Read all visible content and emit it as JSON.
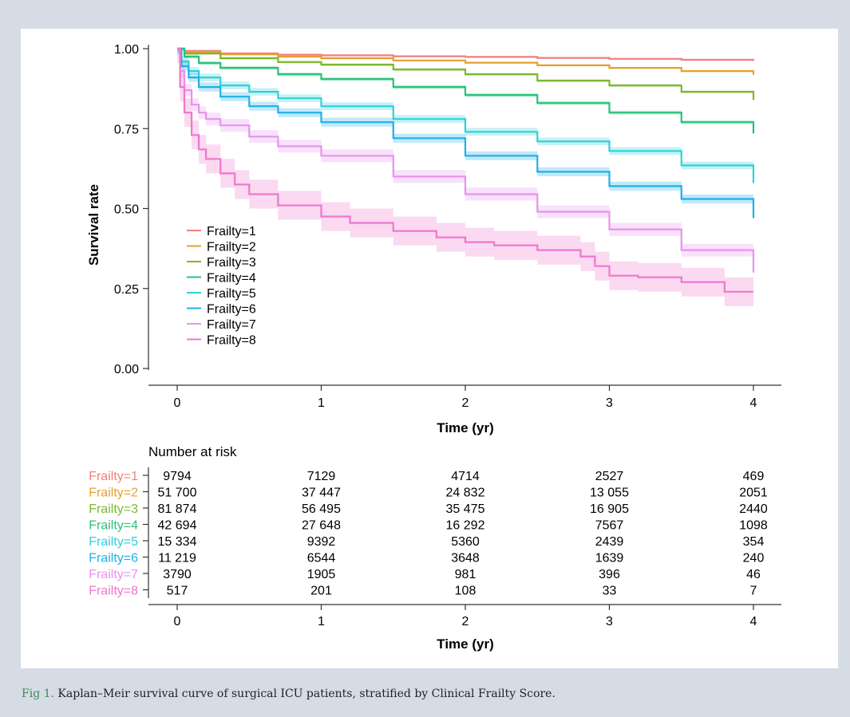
{
  "colors": {
    "background": "#d6dce6",
    "panel": "#ffffff",
    "axis": "#333333",
    "text": "#000000",
    "caption_label": "#3d8a52"
  },
  "chart_data": [
    {
      "type": "line",
      "subtype": "kaplan-meier",
      "title": "",
      "xlabel": "Time (yr)",
      "ylabel": "Survival rate",
      "xlim": [
        0,
        4
      ],
      "ylim": [
        0,
        1
      ],
      "x_ticks": [
        0,
        1,
        2,
        3,
        4
      ],
      "x_tick_labels": [
        "0",
        "1",
        "2",
        "3",
        "4"
      ],
      "y_ticks": [
        0,
        0.25,
        0.5,
        0.75,
        1
      ],
      "y_tick_labels": [
        "0.00",
        "0.25",
        "0.50",
        "0.75",
        "1.00"
      ],
      "grid": false,
      "legend_position": "bottom-left",
      "series": [
        {
          "name": "Frailty=1",
          "color": "#f08080",
          "x": [
            0,
            0.05,
            0.3,
            0.7,
            1,
            1.5,
            2,
            2.5,
            3,
            3.5,
            4
          ],
          "y": [
            1,
            0.993,
            0.985,
            0.981,
            0.979,
            0.976,
            0.974,
            0.971,
            0.968,
            0.965,
            0.962
          ],
          "band": 0.003
        },
        {
          "name": "Frailty=2",
          "color": "#e5a030",
          "x": [
            0,
            0.05,
            0.3,
            0.7,
            1,
            1.5,
            2,
            2.5,
            3,
            3.5,
            4
          ],
          "y": [
            1,
            0.99,
            0.982,
            0.975,
            0.97,
            0.963,
            0.956,
            0.948,
            0.94,
            0.93,
            0.918
          ],
          "band": 0.003
        },
        {
          "name": "Frailty=3",
          "color": "#7cb82f",
          "x": [
            0,
            0.05,
            0.3,
            0.7,
            1,
            1.5,
            2,
            2.5,
            3,
            3.5,
            4
          ],
          "y": [
            1,
            0.985,
            0.97,
            0.958,
            0.95,
            0.935,
            0.92,
            0.9,
            0.885,
            0.865,
            0.84
          ],
          "band": 0.004
        },
        {
          "name": "Frailty=4",
          "color": "#2cc07a",
          "x": [
            0,
            0.05,
            0.15,
            0.3,
            0.7,
            1,
            1.5,
            2,
            2.5,
            3,
            3.5,
            4
          ],
          "y": [
            1,
            0.975,
            0.955,
            0.94,
            0.92,
            0.905,
            0.88,
            0.855,
            0.83,
            0.8,
            0.77,
            0.735
          ],
          "band": 0.006
        },
        {
          "name": "Frailty=5",
          "color": "#2fd0d8",
          "x": [
            0,
            0.03,
            0.08,
            0.15,
            0.3,
            0.5,
            0.7,
            1,
            1.5,
            2,
            2.5,
            3,
            3.5,
            4
          ],
          "y": [
            1,
            0.96,
            0.93,
            0.91,
            0.885,
            0.865,
            0.845,
            0.82,
            0.78,
            0.74,
            0.71,
            0.68,
            0.635,
            0.58
          ],
          "band": 0.012
        },
        {
          "name": "Frailty=6",
          "color": "#1fb0e8",
          "x": [
            0,
            0.03,
            0.08,
            0.15,
            0.3,
            0.5,
            0.7,
            1,
            1.5,
            2,
            2.5,
            3,
            3.5,
            4
          ],
          "y": [
            1,
            0.945,
            0.91,
            0.88,
            0.85,
            0.82,
            0.8,
            0.77,
            0.72,
            0.665,
            0.615,
            0.57,
            0.53,
            0.47
          ],
          "band": 0.014
        },
        {
          "name": "Frailty=7",
          "color": "#e693ee",
          "x": [
            0,
            0.02,
            0.05,
            0.1,
            0.15,
            0.2,
            0.3,
            0.5,
            0.7,
            1,
            1.5,
            2,
            2.5,
            3,
            3.5,
            4
          ],
          "y": [
            1,
            0.93,
            0.87,
            0.825,
            0.8,
            0.78,
            0.76,
            0.725,
            0.695,
            0.665,
            0.6,
            0.545,
            0.49,
            0.435,
            0.37,
            0.3
          ],
          "band": 0.02
        },
        {
          "name": "Frailty=8",
          "color": "#ee77cc",
          "x": [
            0,
            0.02,
            0.05,
            0.1,
            0.15,
            0.2,
            0.3,
            0.4,
            0.5,
            0.7,
            1,
            1.2,
            1.5,
            1.8,
            2,
            2.2,
            2.5,
            2.8,
            2.9,
            3,
            3.2,
            3.5,
            3.7,
            3.8,
            4
          ],
          "y": [
            1,
            0.88,
            0.8,
            0.73,
            0.685,
            0.655,
            0.61,
            0.575,
            0.545,
            0.51,
            0.475,
            0.455,
            0.43,
            0.41,
            0.395,
            0.385,
            0.37,
            0.35,
            0.32,
            0.29,
            0.285,
            0.27,
            0.27,
            0.24,
            0.24
          ],
          "band": 0.045
        }
      ]
    },
    {
      "type": "table",
      "title": "Number at risk",
      "xlabel": "Time (yr)",
      "x_ticks": [
        0,
        1,
        2,
        3,
        4
      ],
      "x_tick_labels": [
        "0",
        "1",
        "2",
        "3",
        "4"
      ],
      "rows": [
        {
          "label": "Frailty=1",
          "color": "#f08080",
          "values": [
            "9794",
            "7129",
            "4714",
            "2527",
            "469"
          ]
        },
        {
          "label": "Frailty=2",
          "color": "#e5a030",
          "values": [
            "51 700",
            "37 447",
            "24 832",
            "13 055",
            "2051"
          ]
        },
        {
          "label": "Frailty=3",
          "color": "#7cb82f",
          "values": [
            "81 874",
            "56 495",
            "35 475",
            "16 905",
            "2440"
          ]
        },
        {
          "label": "Frailty=4",
          "color": "#2cc07a",
          "values": [
            "42 694",
            "27 648",
            "16 292",
            "7567",
            "1098"
          ]
        },
        {
          "label": "Frailty=5",
          "color": "#2fd0d8",
          "values": [
            "15 334",
            "9392",
            "5360",
            "2439",
            "354"
          ]
        },
        {
          "label": "Frailty=6",
          "color": "#1fb0e8",
          "values": [
            "11 219",
            "6544",
            "3648",
            "1639",
            "240"
          ]
        },
        {
          "label": "Frailty=7",
          "color": "#e693ee",
          "values": [
            "3790",
            "1905",
            "981",
            "396",
            "46"
          ]
        },
        {
          "label": "Frailty=8",
          "color": "#ee77cc",
          "values": [
            "517",
            "201",
            "108",
            "33",
            "7"
          ]
        }
      ]
    }
  ],
  "caption": {
    "label": "Fig 1.",
    "text": "Kaplan–Meir survival curve of surgical ICU patients, stratified by Clinical Frailty Score."
  }
}
